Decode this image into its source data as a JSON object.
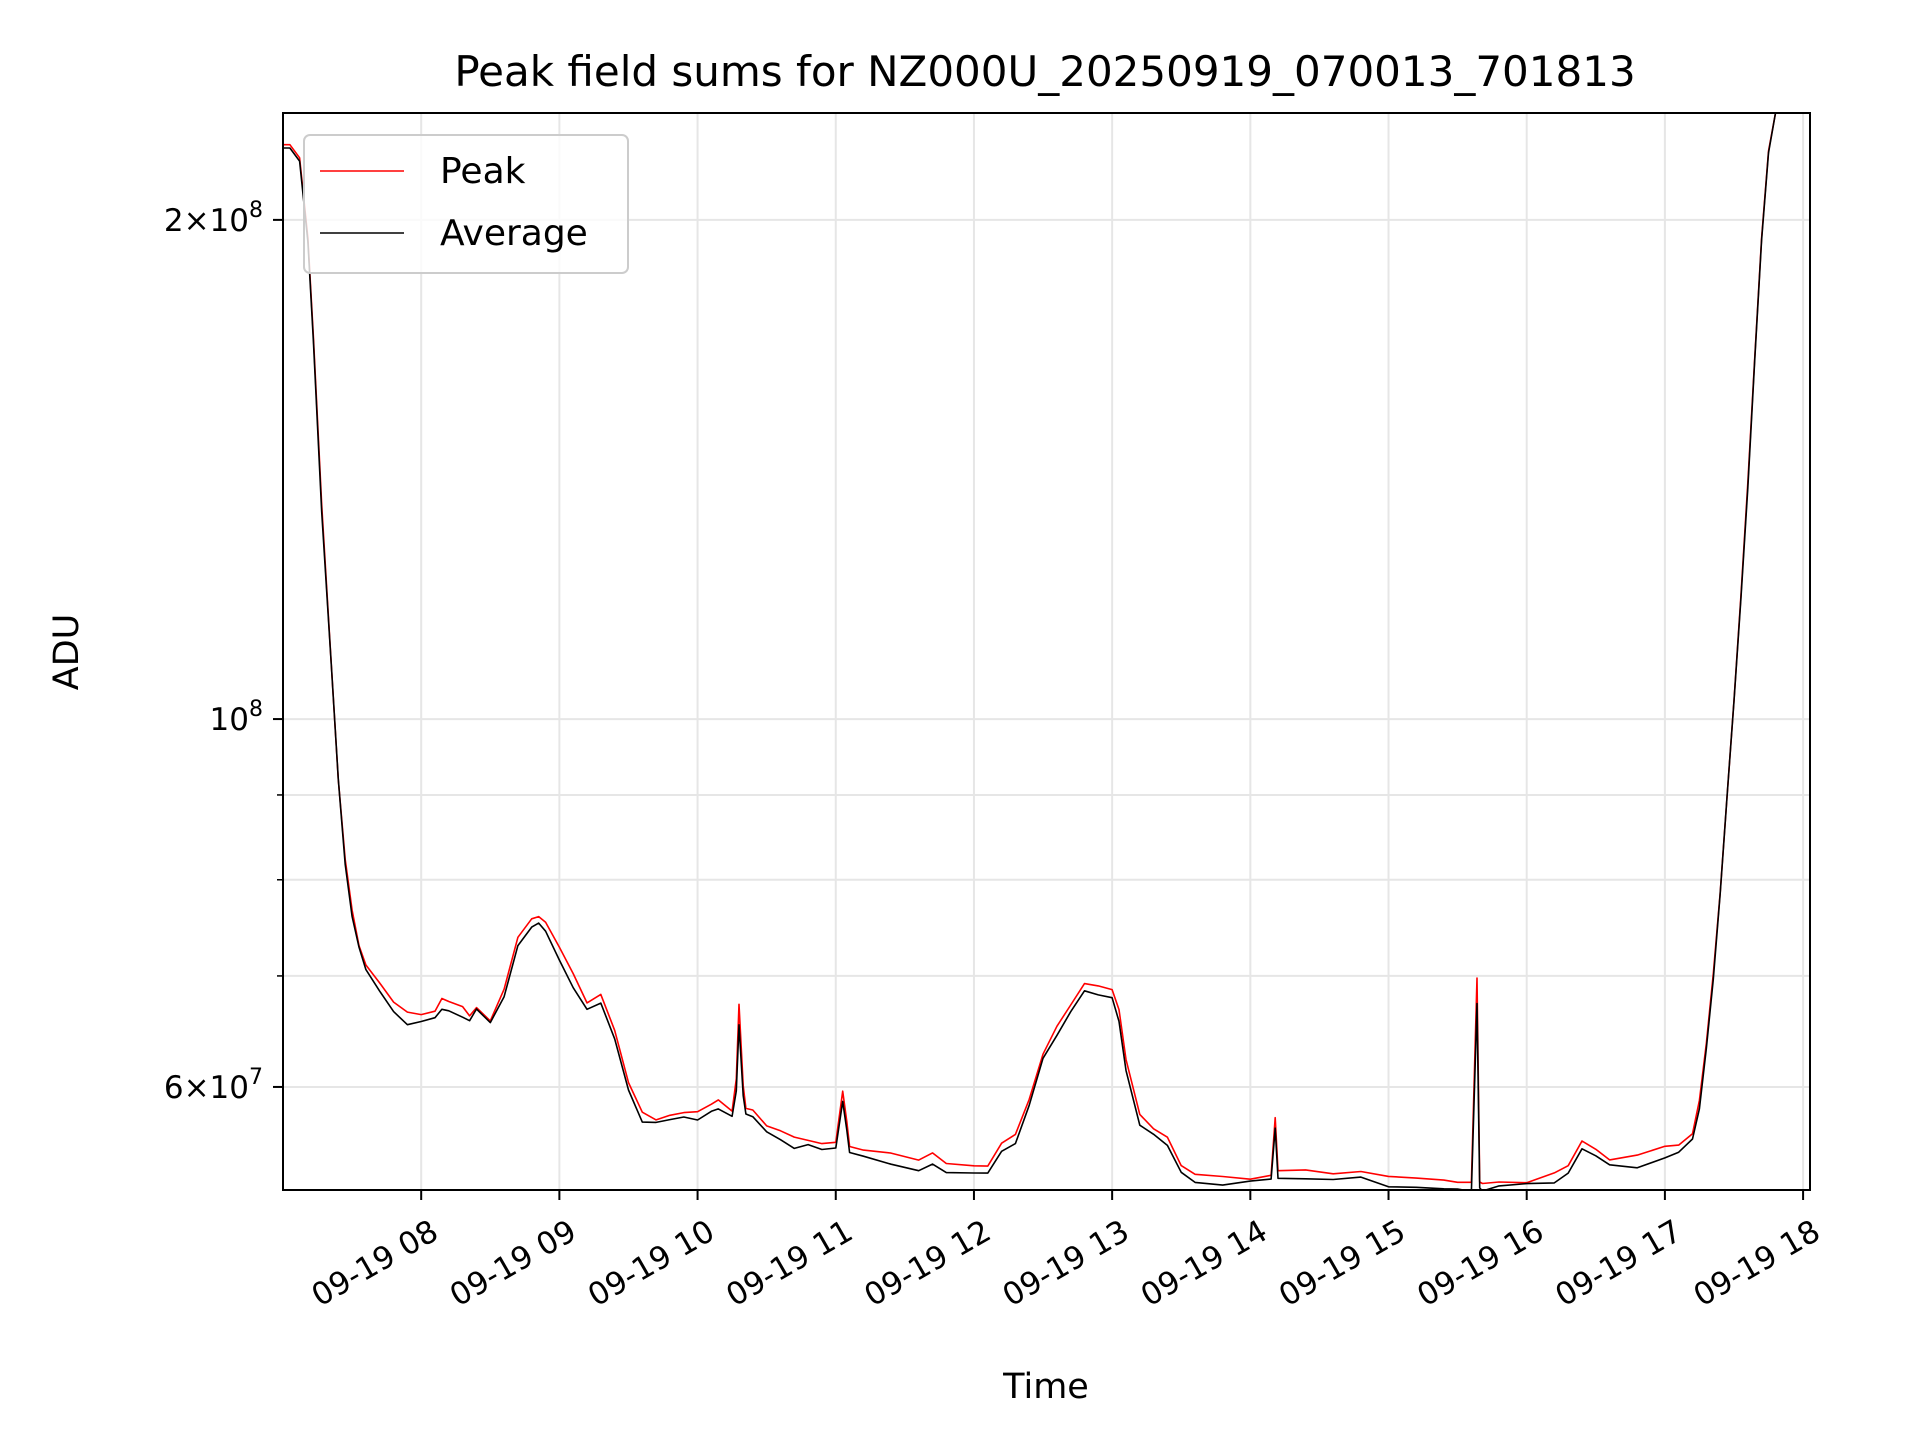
{
  "chart_data": {
    "type": "line",
    "title": "Peak field sums for NZ000U_20250919_070013_701813",
    "xlabel": "Time",
    "ylabel": "ADU",
    "x_unit": "hour of 2025-09-19",
    "xlim": [
      7.0,
      18.05
    ],
    "ylim": [
      52000000,
      232000000
    ],
    "yscale": "log",
    "grid": true,
    "legend_position": "upper-left",
    "x_ticks": [
      {
        "value": 8,
        "label": "09-19 08"
      },
      {
        "value": 9,
        "label": "09-19 09"
      },
      {
        "value": 10,
        "label": "09-19 10"
      },
      {
        "value": 11,
        "label": "09-19 11"
      },
      {
        "value": 12,
        "label": "09-19 12"
      },
      {
        "value": 13,
        "label": "09-19 13"
      },
      {
        "value": 14,
        "label": "09-19 14"
      },
      {
        "value": 15,
        "label": "09-19 15"
      },
      {
        "value": 16,
        "label": "09-19 16"
      },
      {
        "value": 17,
        "label": "09-19 17"
      },
      {
        "value": 18,
        "label": "09-19 18"
      }
    ],
    "y_ticks": [
      {
        "value": 60000000,
        "base": "6",
        "exp": "7"
      },
      {
        "value": 100000000,
        "base": "",
        "exp": "8"
      },
      {
        "value": 200000000,
        "base": "2",
        "exp": "8"
      }
    ],
    "y_minor_ticks": [
      70000000,
      80000000,
      90000000
    ],
    "series": [
      {
        "name": "Peak",
        "color": "#ff0000",
        "x": [
          7.0,
          7.05,
          7.12,
          7.18,
          7.22,
          7.28,
          7.35,
          7.4,
          7.45,
          7.5,
          7.55,
          7.6,
          7.7,
          7.8,
          7.9,
          8.0,
          8.1,
          8.15,
          8.2,
          8.3,
          8.35,
          8.4,
          8.5,
          8.6,
          8.7,
          8.8,
          8.85,
          8.9,
          9.0,
          9.1,
          9.2,
          9.3,
          9.4,
          9.5,
          9.6,
          9.7,
          9.8,
          9.9,
          10.0,
          10.1,
          10.15,
          10.25,
          10.28,
          10.3,
          10.33,
          10.35,
          10.4,
          10.5,
          10.6,
          10.7,
          10.8,
          10.9,
          11.0,
          11.05,
          11.08,
          11.1,
          11.2,
          11.4,
          11.6,
          11.7,
          11.8,
          12.0,
          12.1,
          12.2,
          12.3,
          12.4,
          12.5,
          12.6,
          12.7,
          12.8,
          12.9,
          13.0,
          13.05,
          13.1,
          13.2,
          13.3,
          13.4,
          13.5,
          13.6,
          13.8,
          14.0,
          14.15,
          14.18,
          14.2,
          14.4,
          14.6,
          14.8,
          15.0,
          15.2,
          15.4,
          15.5,
          15.6,
          15.64,
          15.66,
          15.68,
          15.8,
          16.0,
          16.2,
          16.3,
          16.4,
          16.5,
          16.6,
          16.8,
          17.0,
          17.1,
          17.2,
          17.25,
          17.3,
          17.35,
          17.4,
          17.45,
          17.5,
          17.55,
          17.6,
          17.65,
          17.7,
          17.75,
          17.8,
          17.85,
          17.9,
          17.95
        ],
        "values": [
          222000000,
          222000000,
          218000000,
          195000000,
          170000000,
          135000000,
          108000000,
          92000000,
          82000000,
          76500000,
          73000000,
          71000000,
          69000000,
          67500000,
          66500000,
          66500000,
          67000000,
          68000000,
          67800000,
          67200000,
          66500000,
          67200000,
          66000000,
          68500000,
          73500000,
          75500000,
          75800000,
          75000000,
          72500000,
          70000000,
          67800000,
          68500000,
          65000000,
          60500000,
          58000000,
          57500000,
          58000000,
          58200000,
          57800000,
          58500000,
          58800000,
          58000000,
          60500000,
          67000000,
          60000000,
          58500000,
          58200000,
          57000000,
          56500000,
          56000000,
          55800000,
          55500000,
          55500000,
          59500000,
          57000000,
          55200000,
          54800000,
          54500000,
          54000000,
          54500000,
          54000000,
          53800000,
          54000000,
          55500000,
          56200000,
          59000000,
          63000000,
          65000000,
          67000000,
          69000000,
          68800000,
          68500000,
          66500000,
          62000000,
          57500000,
          56800000,
          56000000,
          54000000,
          53200000,
          53000000,
          53000000,
          53200000,
          57200000,
          53200000,
          53200000,
          53000000,
          53200000,
          52800000,
          52700000,
          52700000,
          52800000,
          52600000,
          70000000,
          52800000,
          52700000,
          52800000,
          52800000,
          53000000,
          53500000,
          55500000,
          54800000,
          54200000,
          54300000,
          55000000,
          55500000,
          56500000,
          59000000,
          64000000,
          70500000,
          79000000,
          90000000,
          103000000,
          118000000,
          138000000,
          165000000,
          195000000,
          220000000,
          232000000,
          232000000,
          232000000,
          232000000
        ]
      },
      {
        "name": "Average",
        "color": "#000000",
        "x": [
          7.0,
          7.05,
          7.12,
          7.18,
          7.22,
          7.28,
          7.35,
          7.4,
          7.45,
          7.5,
          7.55,
          7.6,
          7.7,
          7.8,
          7.9,
          8.0,
          8.1,
          8.15,
          8.2,
          8.3,
          8.35,
          8.4,
          8.5,
          8.6,
          8.7,
          8.8,
          8.85,
          8.9,
          9.0,
          9.1,
          9.2,
          9.3,
          9.4,
          9.5,
          9.6,
          9.7,
          9.8,
          9.9,
          10.0,
          10.1,
          10.15,
          10.25,
          10.28,
          10.3,
          10.33,
          10.35,
          10.4,
          10.5,
          10.6,
          10.7,
          10.8,
          10.9,
          11.0,
          11.05,
          11.08,
          11.1,
          11.2,
          11.4,
          11.6,
          11.7,
          11.8,
          12.0,
          12.1,
          12.2,
          12.3,
          12.4,
          12.5,
          12.6,
          12.7,
          12.8,
          12.9,
          13.0,
          13.05,
          13.1,
          13.2,
          13.3,
          13.4,
          13.5,
          13.6,
          13.8,
          14.0,
          14.15,
          14.18,
          14.2,
          14.4,
          14.6,
          14.8,
          15.0,
          15.2,
          15.4,
          15.5,
          15.6,
          15.64,
          15.66,
          15.68,
          15.8,
          16.0,
          16.2,
          16.3,
          16.4,
          16.5,
          16.6,
          16.8,
          17.0,
          17.1,
          17.2,
          17.25,
          17.3,
          17.35,
          17.4,
          17.45,
          17.5,
          17.55,
          17.6,
          17.65,
          17.7,
          17.75,
          17.8,
          17.85,
          17.9,
          17.95
        ],
        "values": [
          221000000,
          221000000,
          217000000,
          194000000,
          169000000,
          134000000,
          107000000,
          91500000,
          81500000,
          76000000,
          72500000,
          70500000,
          68300000,
          66800000,
          65700000,
          65800000,
          66300000,
          67200000,
          67000000,
          66400000,
          65700000,
          66500000,
          65300000,
          67800000,
          72800000,
          74800000,
          75100000,
          74300000,
          71800000,
          69200000,
          67000000,
          67700000,
          64200000,
          59800000,
          57300000,
          56800000,
          57300000,
          57500000,
          57100000,
          57800000,
          58100000,
          57300000,
          59500000,
          65500000,
          59300000,
          57900000,
          57600000,
          56400000,
          55900000,
          55400000,
          55200000,
          54900000,
          54900000,
          58500000,
          56400000,
          54700000,
          54300000,
          54000000,
          53500000,
          54000000,
          53500000,
          53300000,
          53500000,
          55000000,
          55700000,
          58400000,
          62400000,
          64400000,
          66400000,
          68300000,
          68100000,
          67800000,
          65800000,
          61400000,
          57000000,
          56300000,
          55500000,
          53500000,
          52700000,
          52500000,
          52500000,
          52700000,
          56400000,
          52700000,
          52700000,
          52500000,
          52700000,
          52300000,
          52200000,
          52200000,
          52300000,
          52100000,
          67500000,
          52300000,
          52200000,
          52300000,
          52300000,
          52500000,
          53000000,
          55000000,
          54300000,
          53700000,
          53800000,
          54500000,
          55000000,
          56000000,
          58500000,
          63500000,
          70000000,
          78500000,
          89500000,
          102500000,
          117500000,
          137500000,
          164500000,
          194500000,
          219500000,
          232000000,
          232000000,
          232000000,
          232000000
        ]
      }
    ]
  }
}
